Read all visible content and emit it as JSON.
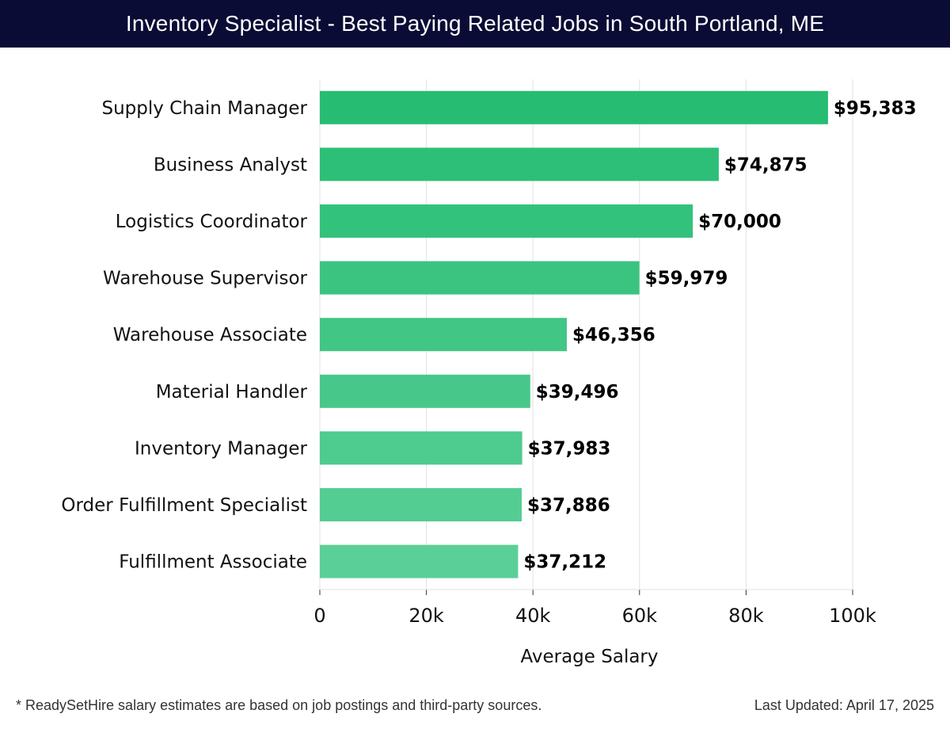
{
  "header": {
    "title": "Inventory Specialist - Best Paying Related Jobs in South Portland, ME"
  },
  "chart_data": {
    "type": "bar",
    "orientation": "horizontal",
    "categories": [
      "Supply Chain Manager",
      "Business Analyst",
      "Logistics Coordinator",
      "Warehouse Supervisor",
      "Warehouse Associate",
      "Material Handler",
      "Inventory Manager",
      "Order Fulfillment Specialist",
      "Fulfillment Associate"
    ],
    "values": [
      95383,
      74875,
      70000,
      59979,
      46356,
      39496,
      37983,
      37886,
      37212
    ],
    "value_labels": [
      "$95,383",
      "$74,875",
      "$70,000",
      "$59,979",
      "$46,356",
      "$39,496",
      "$37,983",
      "$37,886",
      "$37,212"
    ],
    "xlabel": "Average Salary",
    "ylabel": "",
    "xlim": [
      0,
      100000
    ],
    "xticks": [
      0,
      20000,
      40000,
      60000,
      80000,
      100000
    ],
    "xtick_labels": [
      "0",
      "20k",
      "40k",
      "60k",
      "80k",
      "100k"
    ],
    "grid": true,
    "colors": {
      "bar_top": "#26bd72",
      "bar_bottom": "#5bcf98",
      "grid": "#e2e2e2",
      "axis": "#333333",
      "label": "#111111"
    }
  },
  "footer": {
    "note": "* ReadySetHire salary estimates are based on job postings and third-party sources.",
    "updated": "Last Updated: April 17, 2025"
  }
}
